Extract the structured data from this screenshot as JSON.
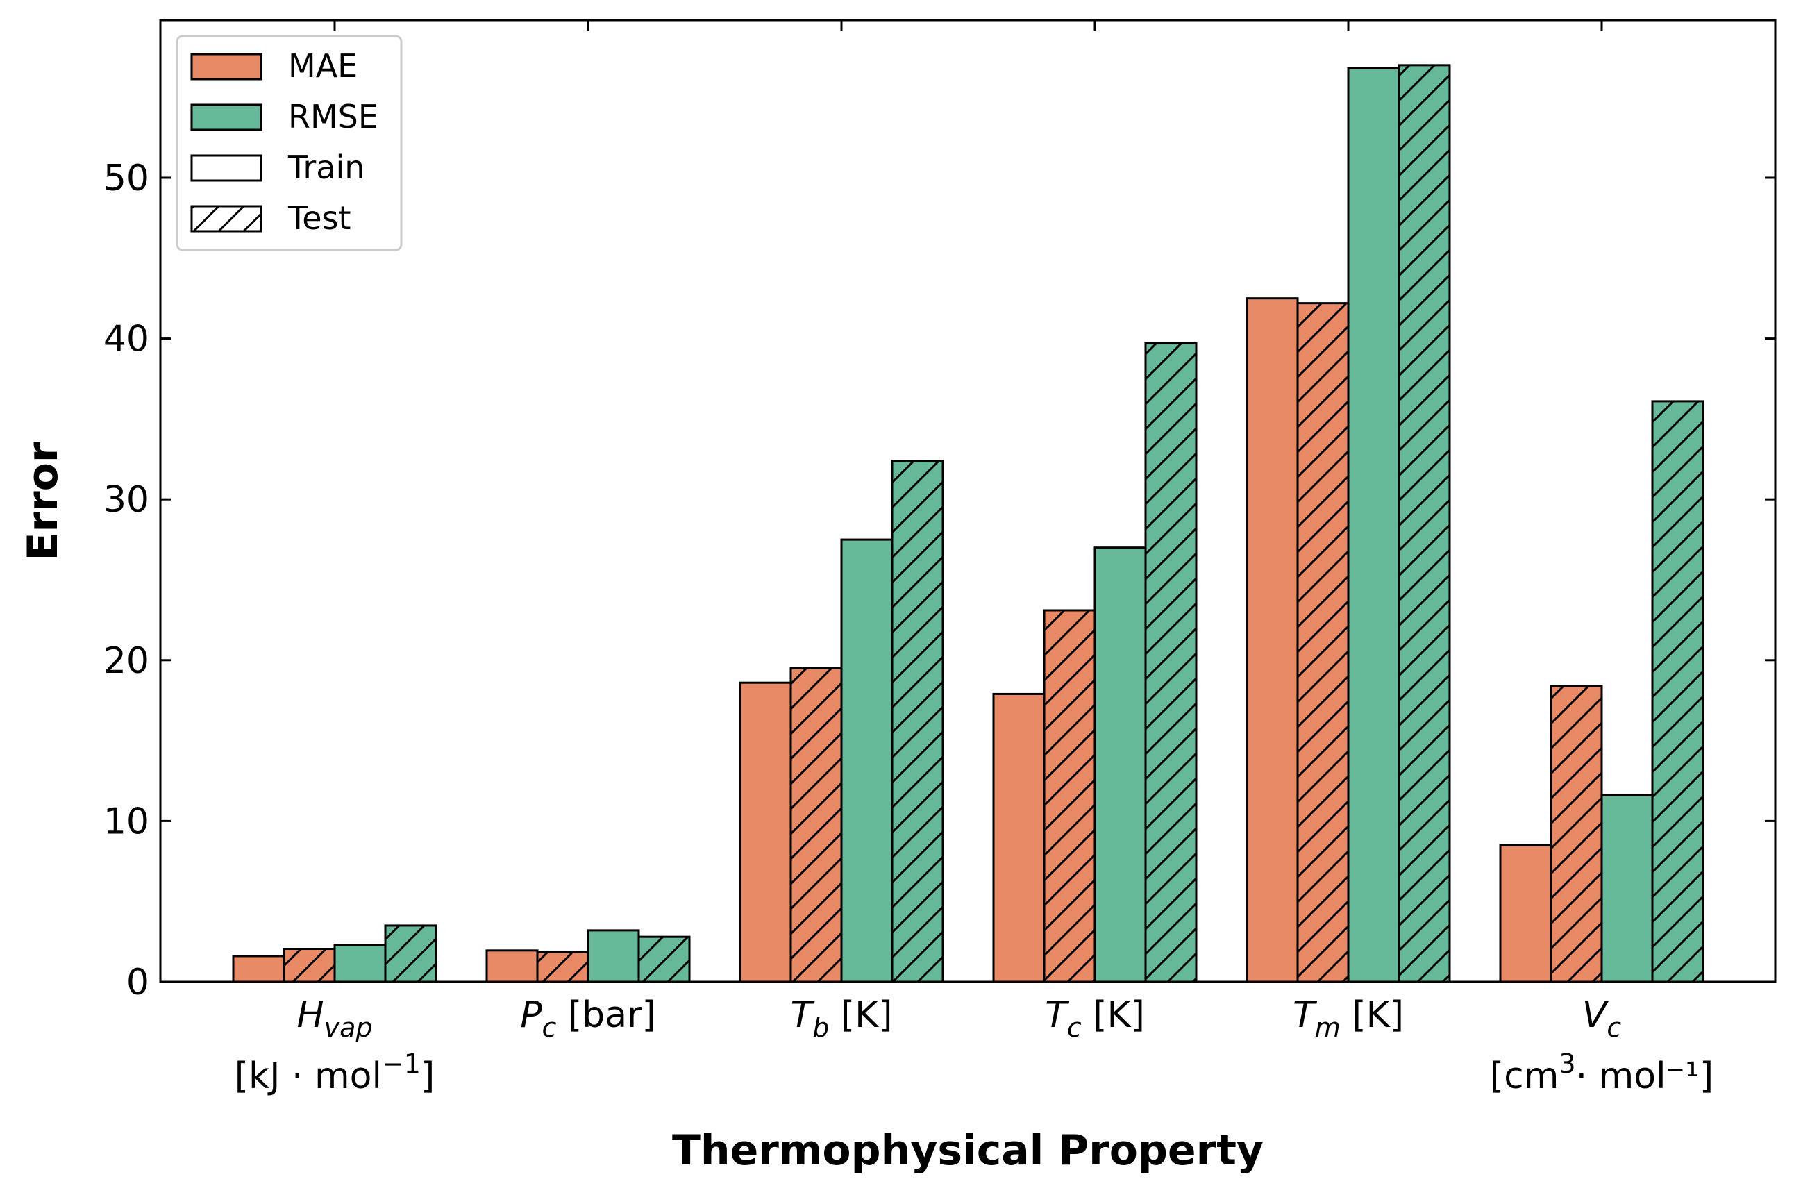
{
  "chart_data": {
    "type": "bar",
    "title": "",
    "xlabel": "Thermophysical Property",
    "ylabel": "Error",
    "ylim": [
      0,
      59.8
    ],
    "yticks": [
      0,
      10,
      20,
      30,
      40,
      50
    ],
    "grid": false,
    "legend_placement": "top-left",
    "categories": [
      {
        "sym": "H",
        "sub": "vap",
        "unit": "",
        "line2": "[kJ · mol",
        "line2_sup": "−1",
        "line2_end": "]"
      },
      {
        "sym": "P",
        "sub": "c",
        "unit": " [bar]",
        "line2": "",
        "line2_sup": "",
        "line2_end": ""
      },
      {
        "sym": "T",
        "sub": "b",
        "unit": " [K]",
        "line2": "",
        "line2_sup": "",
        "line2_end": ""
      },
      {
        "sym": "T",
        "sub": "c",
        "unit": " [K]",
        "line2": "",
        "line2_sup": "",
        "line2_end": ""
      },
      {
        "sym": "T",
        "sub": "m",
        "unit": " [K]",
        "line2": "",
        "line2_sup": "",
        "line2_end": ""
      },
      {
        "sym": "V",
        "sub": "c",
        "unit": "",
        "line2": "[cm",
        "line2_sup": "3",
        "line2_end": "· mol⁻¹]"
      }
    ],
    "series": [
      {
        "metric": "MAE",
        "split": "Train",
        "color": "#E98A67",
        "hatch": false,
        "values": [
          1.6,
          1.95,
          18.6,
          17.9,
          42.5,
          8.5
        ]
      },
      {
        "metric": "MAE",
        "split": "Test",
        "color": "#E98A67",
        "hatch": true,
        "values": [
          2.05,
          1.85,
          19.5,
          23.1,
          42.2,
          18.4
        ]
      },
      {
        "metric": "RMSE",
        "split": "Train",
        "color": "#66B999",
        "hatch": false,
        "values": [
          2.3,
          3.2,
          27.5,
          27.0,
          56.8,
          11.6
        ]
      },
      {
        "metric": "RMSE",
        "split": "Test",
        "color": "#66B999",
        "hatch": true,
        "values": [
          3.5,
          2.8,
          32.4,
          39.7,
          57.0,
          36.1
        ]
      }
    ],
    "legend": [
      {
        "label": "MAE",
        "color": "#E98A67",
        "hatch": false
      },
      {
        "label": "RMSE",
        "color": "#66B999",
        "hatch": false
      },
      {
        "label": "Train",
        "color": "#ffffff",
        "hatch": false
      },
      {
        "label": "Test",
        "color": "#ffffff",
        "hatch": true
      }
    ]
  }
}
